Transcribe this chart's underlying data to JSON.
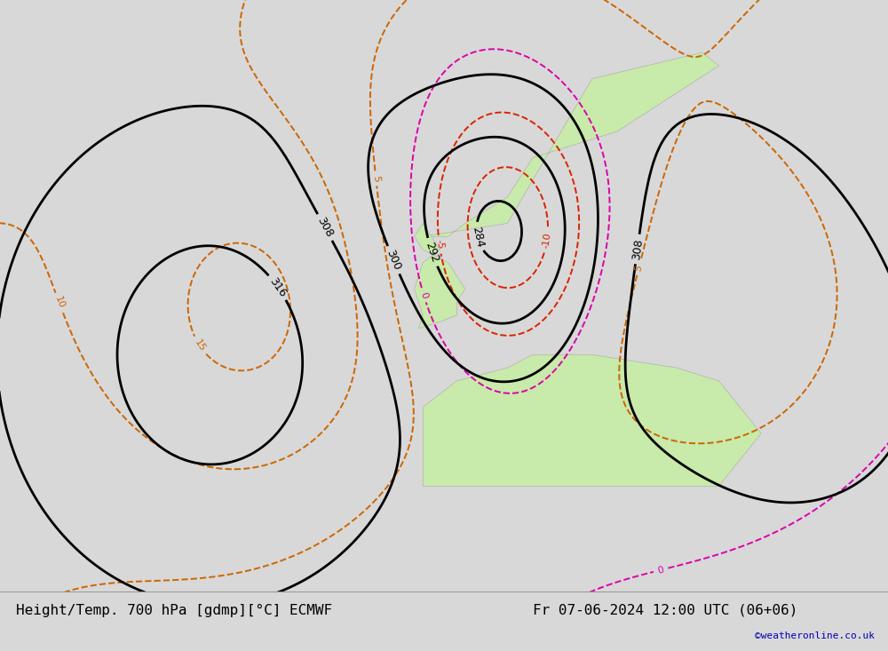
{
  "title_left": "Height/Temp. 700 hPa [gdmp][°C] ECMWF",
  "title_right": "Fr 07-06-2024 12:00 UTC (06+06)",
  "watermark": "©weatheronline.co.uk",
  "fig_width": 10.0,
  "fig_height": 7.33,
  "bg_map_color": "#d8d8d8",
  "land_green": "#c8eaaa",
  "land_green2": "#d0ec90",
  "coast_color": "#aaaaaa",
  "title_color": "#000000",
  "watermark_color": "#0000bb",
  "bottom_bar_color": "#d8d8d8",
  "title_fontsize": 11.5,
  "watermark_fontsize": 8,
  "contour_black_color": "#000000",
  "contour_red_color": "#dd2200",
  "contour_orange_color": "#cc6600",
  "contour_magenta_color": "#dd00aa",
  "dpi": 100,
  "lon_min": -55,
  "lon_max": 50,
  "lat_min": 30,
  "lat_max": 75
}
